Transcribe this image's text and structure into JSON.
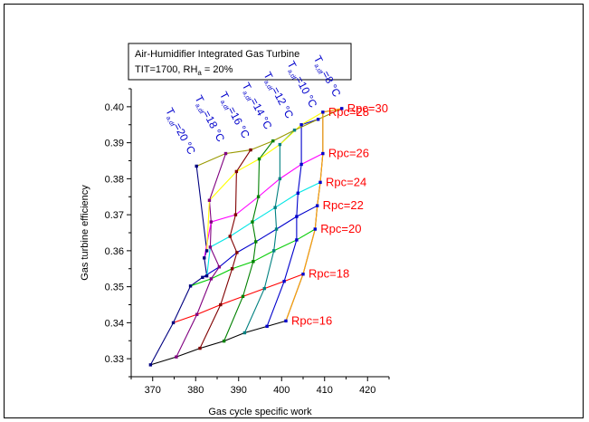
{
  "chart_data": {
    "type": "line",
    "legend_lines": [
      "Air-Humidifier Integrated Gas Turbine",
      "TIT=1700, RH",
      "a",
      " = 20%"
    ],
    "xlabel": "Gas cycle specific work",
    "ylabel": "Gas turbine efficiency",
    "xlim": [
      365,
      425
    ],
    "ylim": [
      0.325,
      0.405
    ],
    "xticks": [
      370,
      380,
      390,
      400,
      410,
      420
    ],
    "yticks": [
      0.33,
      0.34,
      0.35,
      0.36,
      0.37,
      0.38,
      0.39,
      0.4
    ],
    "tdf_values": [
      20,
      18,
      16,
      14,
      12,
      10,
      8
    ],
    "tdf_label_parts": [
      "T",
      "a,df",
      "=",
      "°C"
    ],
    "rpc_values": [
      16,
      18,
      20,
      22,
      24,
      26,
      28,
      30
    ],
    "rpc_label_prefix": "Rpc=",
    "rpc_colors": [
      "#000000",
      "#ff0000",
      "#00cc00",
      "#0000cc",
      "#00e5e5",
      "#ff00ff",
      "#ffff00",
      "#999900"
    ],
    "tdf_colors": [
      "#000080",
      "#800080",
      "#800000",
      "#008000",
      "#008080",
      "#0000cc",
      "#0000cc"
    ],
    "edge_color": "#ffa500",
    "points": [
      [
        [
          369.5,
          0.3283
        ],
        [
          375.5,
          0.3305
        ],
        [
          381.0,
          0.3329
        ],
        [
          386.6,
          0.3349
        ],
        [
          391.4,
          0.3372
        ],
        [
          396.6,
          0.339
        ],
        [
          401.0,
          0.3405
        ]
      ],
      [
        [
          374.8,
          0.34
        ],
        [
          380.3,
          0.3423
        ],
        [
          385.8,
          0.345
        ],
        [
          391.0,
          0.3473
        ],
        [
          396.0,
          0.3495
        ],
        [
          400.6,
          0.3515
        ],
        [
          405.0,
          0.3535
        ]
      ],
      [
        [
          378.8,
          0.3502
        ],
        [
          383.6,
          0.3522
        ],
        [
          388.5,
          0.355
        ],
        [
          393.4,
          0.357
        ],
        [
          398.2,
          0.36
        ],
        [
          403.5,
          0.363
        ],
        [
          407.8,
          0.366
        ]
      ],
      [
        [
          381.6,
          0.3526
        ],
        [
          385.5,
          0.3555
        ],
        [
          389.6,
          0.3595
        ],
        [
          394.0,
          0.3625
        ],
        [
          398.8,
          0.366
        ],
        [
          403.5,
          0.3695
        ],
        [
          408.3,
          0.3725
        ]
      ],
      [
        [
          382.6,
          0.353
        ],
        [
          383.4,
          0.361
        ],
        [
          388.0,
          0.364
        ],
        [
          393.2,
          0.368
        ],
        [
          398.5,
          0.372
        ],
        [
          403.8,
          0.376
        ],
        [
          409.0,
          0.379
        ]
      ],
      [
        [
          382.0,
          0.358
        ],
        [
          383.6,
          0.368
        ],
        [
          389.3,
          0.37
        ],
        [
          394.6,
          0.375
        ],
        [
          399.6,
          0.38
        ],
        [
          404.6,
          0.384
        ],
        [
          409.6,
          0.387
        ]
      ],
      [
        [
          382.6,
          0.36
        ],
        [
          383.2,
          0.374
        ],
        [
          389.5,
          0.382
        ],
        [
          394.8,
          0.3855
        ],
        [
          399.6,
          0.3895
        ],
        [
          404.6,
          0.395
        ],
        [
          409.6,
          0.3985
        ]
      ],
      [
        [
          380.2,
          0.3835
        ],
        [
          387.0,
          0.387
        ],
        [
          392.8,
          0.388
        ],
        [
          398.0,
          0.3905
        ],
        [
          403.0,
          0.3935
        ],
        [
          408.5,
          0.3965
        ],
        [
          414.0,
          0.3995
        ]
      ]
    ]
  }
}
